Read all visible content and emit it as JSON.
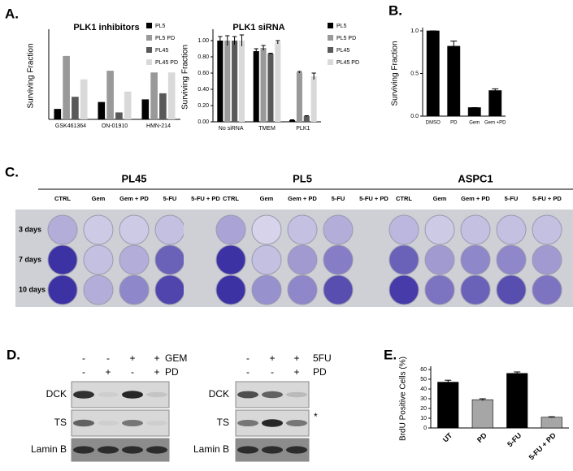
{
  "panel_labels": [
    "A.",
    "B.",
    "C.",
    "D.",
    "E."
  ],
  "chart_data": [
    {
      "type": "bar",
      "title": "PLK1 inhibitors",
      "y_label": "Surviving Fraction",
      "categories": [
        "GSK461364",
        "ON-01910",
        "HMN-214"
      ],
      "series": [
        {
          "name": "PL5",
          "color": "#000000",
          "values": [
            0.12,
            0.2,
            0.23
          ]
        },
        {
          "name": "PL5 PD",
          "color": "#999999",
          "values": [
            0.73,
            0.56,
            0.54
          ]
        },
        {
          "name": "PL45",
          "color": "#595959",
          "values": [
            0.26,
            0.08,
            0.3
          ]
        },
        {
          "name": "PL45 PD",
          "color": "#d9d9d9",
          "values": [
            0.46,
            0.32,
            0.54
          ]
        }
      ],
      "ylim": [
        0,
        1
      ],
      "legend": "upper right"
    },
    {
      "type": "bar",
      "title": "PLK1 siRNA",
      "y_label": "Surviving Fraction",
      "categories": [
        "No siRNA",
        "TMEM",
        "PLK1"
      ],
      "series": [
        {
          "name": "PL5",
          "color": "#000000",
          "values": [
            1.0,
            0.87,
            0.02
          ],
          "errors": [
            0.05,
            0.03,
            0.005
          ]
        },
        {
          "name": "PL5 PD",
          "color": "#999999",
          "values": [
            1.0,
            0.91,
            0.61
          ],
          "errors": [
            0.06,
            0.03,
            0.01
          ]
        },
        {
          "name": "PL45",
          "color": "#595959",
          "values": [
            1.0,
            0.84,
            0.07
          ],
          "errors": [
            0.05,
            0.005,
            0.005
          ]
        },
        {
          "name": "PL45 PD",
          "color": "#d9d9d9",
          "values": [
            1.0,
            0.98,
            0.56
          ],
          "errors": [
            0.07,
            0.02,
            0.04
          ]
        }
      ],
      "ylim": [
        0,
        1.1
      ],
      "yticks": [
        {
          "value": 0,
          "label": "0.00"
        },
        {
          "value": 0.2,
          "label": "0.20"
        },
        {
          "value": 0.4,
          "label": "0.40"
        },
        {
          "value": 0.6,
          "label": "0.60"
        },
        {
          "value": 0.8,
          "label": "0.80"
        },
        {
          "value": 1,
          "label": "1.00"
        }
      ],
      "legend": "right"
    },
    {
      "type": "bar",
      "y_label": "Surviving Fraction",
      "categories": [
        "DMSO",
        "PD",
        "Gem",
        "Gem +PD"
      ],
      "values": [
        1.0,
        0.82,
        0.1,
        0.3
      ],
      "errors": [
        0,
        0.06,
        0,
        0.02
      ],
      "colors": [
        "#000000",
        "#000000",
        "#000000",
        "#000000"
      ],
      "ylim": [
        0,
        1.0
      ],
      "yticks": [
        {
          "value": 0,
          "label": "0.0"
        },
        {
          "value": 0.5,
          "label": "0.5"
        },
        {
          "value": 1,
          "label": "1.0"
        }
      ]
    },
    {
      "type": "bar",
      "y_label": "BrdU Positive Cells (%)",
      "categories": [
        "UT",
        "PD",
        "5-FU",
        "5-FU + PD"
      ],
      "values": [
        47,
        29,
        56,
        11
      ],
      "errors": [
        2,
        1,
        1.5,
        0.5
      ],
      "colors": [
        "#000000",
        "#a6a6a6",
        "#000000",
        "#a6a6a6"
      ],
      "ylim": [
        0,
        60
      ],
      "yticks": [
        0,
        10,
        20,
        30,
        40,
        50,
        60
      ]
    }
  ],
  "panel_c": {
    "plates": [
      "PL45",
      "PL5",
      "ASPC1"
    ],
    "columns": [
      "CTRL",
      "Gem",
      "Gem + PD",
      "5-FU",
      "5-FU + PD"
    ],
    "rows": [
      "3 days",
      "7 days",
      "10 days"
    ]
  },
  "panel_d": {
    "left": {
      "treatments": [
        {
          "name": "GEM",
          "signs": [
            "-",
            "-",
            "+",
            "+"
          ]
        },
        {
          "name": "PD",
          "signs": [
            "-",
            "+",
            "-",
            "+"
          ]
        }
      ],
      "bands": [
        "DCK",
        "TS",
        "Lamin B"
      ]
    },
    "right": {
      "treatments": [
        {
          "name": "5FU",
          "signs": [
            "-",
            "+",
            "+"
          ]
        },
        {
          "name": "PD",
          "signs": [
            "-",
            "-",
            "+"
          ]
        }
      ],
      "bands": [
        "DCK",
        "TS",
        "Lamin B"
      ],
      "note": "*"
    }
  }
}
